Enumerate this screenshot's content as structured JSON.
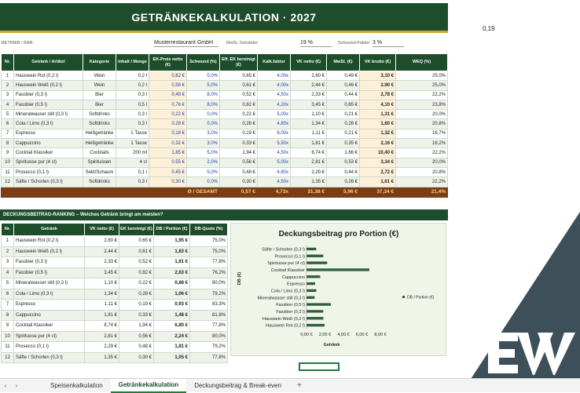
{
  "title": "GETRÄNKEKALKULATION · 2027",
  "outside_value": "0,19",
  "meta": {
    "betrieb_label": "BETRIEB / BAR:",
    "betrieb_value": "Musterrestaurant GmbH",
    "mwst_label": "MwSt. Getränke:",
    "mwst_value": "19 %",
    "schwund_label": "Schwund-Faktor:",
    "schwund_value": "3 %"
  },
  "main_table": {
    "headers": [
      "Nr.",
      "Getränk / Artikel",
      "Kategorie",
      "Inhalt / Menge",
      "EK-Preis netto (€)",
      "Schwund (%)",
      "Eff. EK bereinigt (€)",
      "Kalk.faktor",
      "VK netto (€)",
      "MwSt. (€)",
      "VK brutto (€)",
      "WEQ (%)"
    ],
    "rows": [
      [
        "1",
        "Hauswein Rot (0,2 l)",
        "Wein",
        "0,2 l",
        "0,62 €",
        "5,0%",
        "0,65 €",
        "4,00x",
        "2,60 €",
        "0,49 €",
        "3,10 €",
        "25,0%"
      ],
      [
        "2",
        "Hauswein Weiß (0,2 l)",
        "Wein",
        "0,2 l",
        "0,58 €",
        "5,0%",
        "0,61 €",
        "4,00x",
        "2,44 €",
        "0,46 €",
        "2,90 €",
        "25,0%"
      ],
      [
        "3",
        "Fassbier (0,3 l)",
        "Bier",
        "0,3 l",
        "0,48 €",
        "8,0%",
        "0,52 €",
        "4,50x",
        "2,33 €",
        "0,44 €",
        "2,78 €",
        "22,2%"
      ],
      [
        "4",
        "Fassbier (0,5 l)",
        "Bier",
        "0,5 l",
        "0,76 €",
        "8,0%",
        "0,82 €",
        "4,20x",
        "3,45 €",
        "0,65 €",
        "4,10 €",
        "23,8%"
      ],
      [
        "5",
        "Mineralwasser still (0,3 l)",
        "Softdrinks",
        "0,3 l",
        "0,22 €",
        "0,0%",
        "0,22 €",
        "5,00x",
        "1,10 €",
        "0,21 €",
        "1,31 €",
        "20,0%"
      ],
      [
        "6",
        "Cola / Limo (0,3 l)",
        "Softdrinks",
        "0,3 l",
        "0,28 €",
        "0,0%",
        "0,28 €",
        "4,80x",
        "1,34 €",
        "0,26 €",
        "1,60 €",
        "20,8%"
      ],
      [
        "7",
        "Espresso",
        "Heißgetränke",
        "1 Tasse",
        "0,18 €",
        "3,0%",
        "0,19 €",
        "6,00x",
        "1,11 €",
        "0,21 €",
        "1,32 €",
        "16,7%"
      ],
      [
        "8",
        "Cappuccino",
        "Heißgetränke",
        "1 Tasse",
        "0,32 €",
        "3,0%",
        "0,33 €",
        "5,50x",
        "1,81 €",
        "0,35 €",
        "2,16 €",
        "18,2%"
      ],
      [
        "9",
        "Cocktail Klassiker",
        "Cocktails",
        "200 ml",
        "1,85 €",
        "5,0%",
        "1,94 €",
        "4,50x",
        "8,74 €",
        "1,66 €",
        "10,40 €",
        "22,2%"
      ],
      [
        "10",
        "Spirituose pur (4 cl)",
        "Spirituosen",
        "4 cl",
        "0,55 €",
        "2,0%",
        "0,56 €",
        "5,00x",
        "2,81 €",
        "0,53 €",
        "3,34 €",
        "20,0%"
      ],
      [
        "11",
        "Prosecco (0,1 l)",
        "Sekt/Schaum",
        "0,1 l",
        "0,45 €",
        "5,0%",
        "0,48 €",
        "4,80x",
        "2,29 €",
        "0,44 €",
        "2,72 €",
        "20,8%"
      ],
      [
        "12",
        "Säfte / Schorlen (0,3 l)",
        "Softdrinks",
        "0,3 l",
        "0,30 €",
        "0,0%",
        "0,30 €",
        "4,50x",
        "1,35 €",
        "0,26 €",
        "1,61 €",
        "22,2%"
      ]
    ],
    "total": {
      "label": "Ø / GESAMT",
      "eff_ek": "0,57 €",
      "kalk": "4,73x",
      "vk_netto": "31,38 €",
      "mwst": "5,96 €",
      "vk_brutto": "37,34 €",
      "weq": "21,4%"
    }
  },
  "ranking": {
    "header": "DECKUNGSBEITRAG-RANKING  –  Welches Getränk bringt am meisten?",
    "headers": [
      "Nr.",
      "Getränk",
      "VK netto (€)",
      "EK bereinigt (€)",
      "DB / Portion (€)",
      "DB-Quote (%)"
    ],
    "rows": [
      [
        "1",
        "Hauswein Rot (0,2 l)",
        "2,60 €",
        "0,65 €",
        "1,95 €",
        "75,0%"
      ],
      [
        "2",
        "Hauswein Weiß (0,2 l)",
        "2,44 €",
        "0,61 €",
        "1,83 €",
        "75,0%"
      ],
      [
        "3",
        "Fassbier (0,3 l)",
        "2,33 €",
        "0,52 €",
        "1,81 €",
        "77,8%"
      ],
      [
        "4",
        "Fassbier (0,5 l)",
        "3,45 €",
        "0,82 €",
        "2,63 €",
        "76,2%"
      ],
      [
        "5",
        "Mineralwasser still (0,3 l)",
        "1,10 €",
        "0,22 €",
        "0,88 €",
        "80,0%"
      ],
      [
        "6",
        "Cola / Limo (0,3 l)",
        "1,34 €",
        "0,28 €",
        "1,06 €",
        "79,2%"
      ],
      [
        "7",
        "Espresso",
        "1,11 €",
        "0,19 €",
        "0,93 €",
        "83,3%"
      ],
      [
        "8",
        "Cappuccino",
        "1,81 €",
        "0,33 €",
        "1,48 €",
        "81,8%"
      ],
      [
        "9",
        "Cocktail Klassiker",
        "8,74 €",
        "1,94 €",
        "6,80 €",
        "77,8%"
      ],
      [
        "10",
        "Spirituose pur (4 cl)",
        "2,81 €",
        "0,56 €",
        "2,24 €",
        "80,0%"
      ],
      [
        "11",
        "Prosecco (0,1 l)",
        "2,29 €",
        "0,48 €",
        "1,81 €",
        "79,2%"
      ],
      [
        "12",
        "Säfte / Schorlen (0,3 l)",
        "1,35 €",
        "0,30 €",
        "1,05 €",
        "77,8%"
      ]
    ]
  },
  "chart_data": {
    "type": "bar",
    "orientation": "horizontal",
    "title": "Deckungsbeitrag pro Portion (€)",
    "xlabel": "Getränk",
    "ylabel": "DB (€)",
    "categories": [
      "Hauswein Rot (0,2 l)",
      "Hauswein Weiß (0,2 l)",
      "Fassbier (0,3 l)",
      "Fassbier (0,5 l)",
      "Mineralwasser still (0,3 l)",
      "Cola / Limo (0,3 l)",
      "Espresso",
      "Cappuccino",
      "Cocktail Klassiker",
      "Spirituose pur (4 cl)",
      "Prosecco (0,1 l)",
      "Säfte / Schorlen (0,3 l)"
    ],
    "series": [
      {
        "name": "DB / Portion (€)",
        "values": [
          1.95,
          1.83,
          1.81,
          2.63,
          0.88,
          1.06,
          0.93,
          1.48,
          6.8,
          2.24,
          1.81,
          1.05
        ]
      }
    ],
    "xlim": [
      0,
      8
    ],
    "xticks": [
      "0,00 €",
      "2,00 €",
      "4,00 €",
      "6,00 €",
      "8,00 €"
    ],
    "legend": "right",
    "bar_color": "#2e5e3e"
  },
  "tabs": {
    "items": [
      "Speisenkalkulation",
      "Getränkekalkulation",
      "Deckungsbeitrag & Break-even"
    ],
    "active": "Getränkekalkulation",
    "add": "+",
    "nav_prev": "‹",
    "nav_next": "›"
  }
}
